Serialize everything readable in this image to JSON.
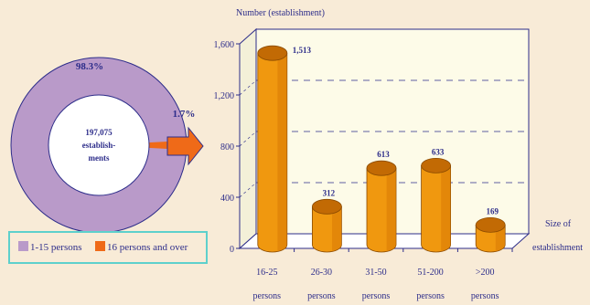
{
  "colors": {
    "background": "#f8ebd7",
    "ring_main": "#b99ac9",
    "ring_minor": "#ef6a18",
    "bar_body": "#f0980f",
    "bar_top": "#c26a04",
    "text_blue": "#2d2d8a",
    "legend_border": "#5ed0cc",
    "arrow": "#ef6a18"
  },
  "donut": {
    "center_line1": "197,075",
    "center_line2": "establish-",
    "center_line3": "ments",
    "pct_main": "98.3%",
    "pct_minor": "1.7%",
    "share_main": 98.3,
    "share_minor": 1.7,
    "arrow_icon": "right-arrow-icon"
  },
  "legend": {
    "item1": "1-15 persons",
    "item2": "16 persons and over"
  },
  "chart_data": {
    "type": "bar",
    "title": "",
    "ylabel": "Number (establishment)",
    "xlabel_line1": "Size of",
    "xlabel_line2": "establishment",
    "categories": [
      "16-25 persons",
      "26-30 persons",
      "31-50 persons",
      "51-200 persons",
      ">200 persons"
    ],
    "category_lines": [
      [
        "16-25",
        "persons"
      ],
      [
        "26-30",
        "persons"
      ],
      [
        "31-50",
        "persons"
      ],
      [
        "51-200",
        "persons"
      ],
      [
        ">200",
        "persons"
      ]
    ],
    "values": [
      1513,
      312,
      613,
      633,
      169
    ],
    "value_labels": [
      "1,513",
      "312",
      "613",
      "633",
      "169"
    ],
    "ylim": [
      0,
      1600
    ],
    "yticks": [
      0,
      400,
      800,
      1200,
      1600
    ],
    "ytick_labels": [
      "0",
      "400",
      "800",
      "1,200",
      "1,600"
    ],
    "grid": "dashed"
  }
}
